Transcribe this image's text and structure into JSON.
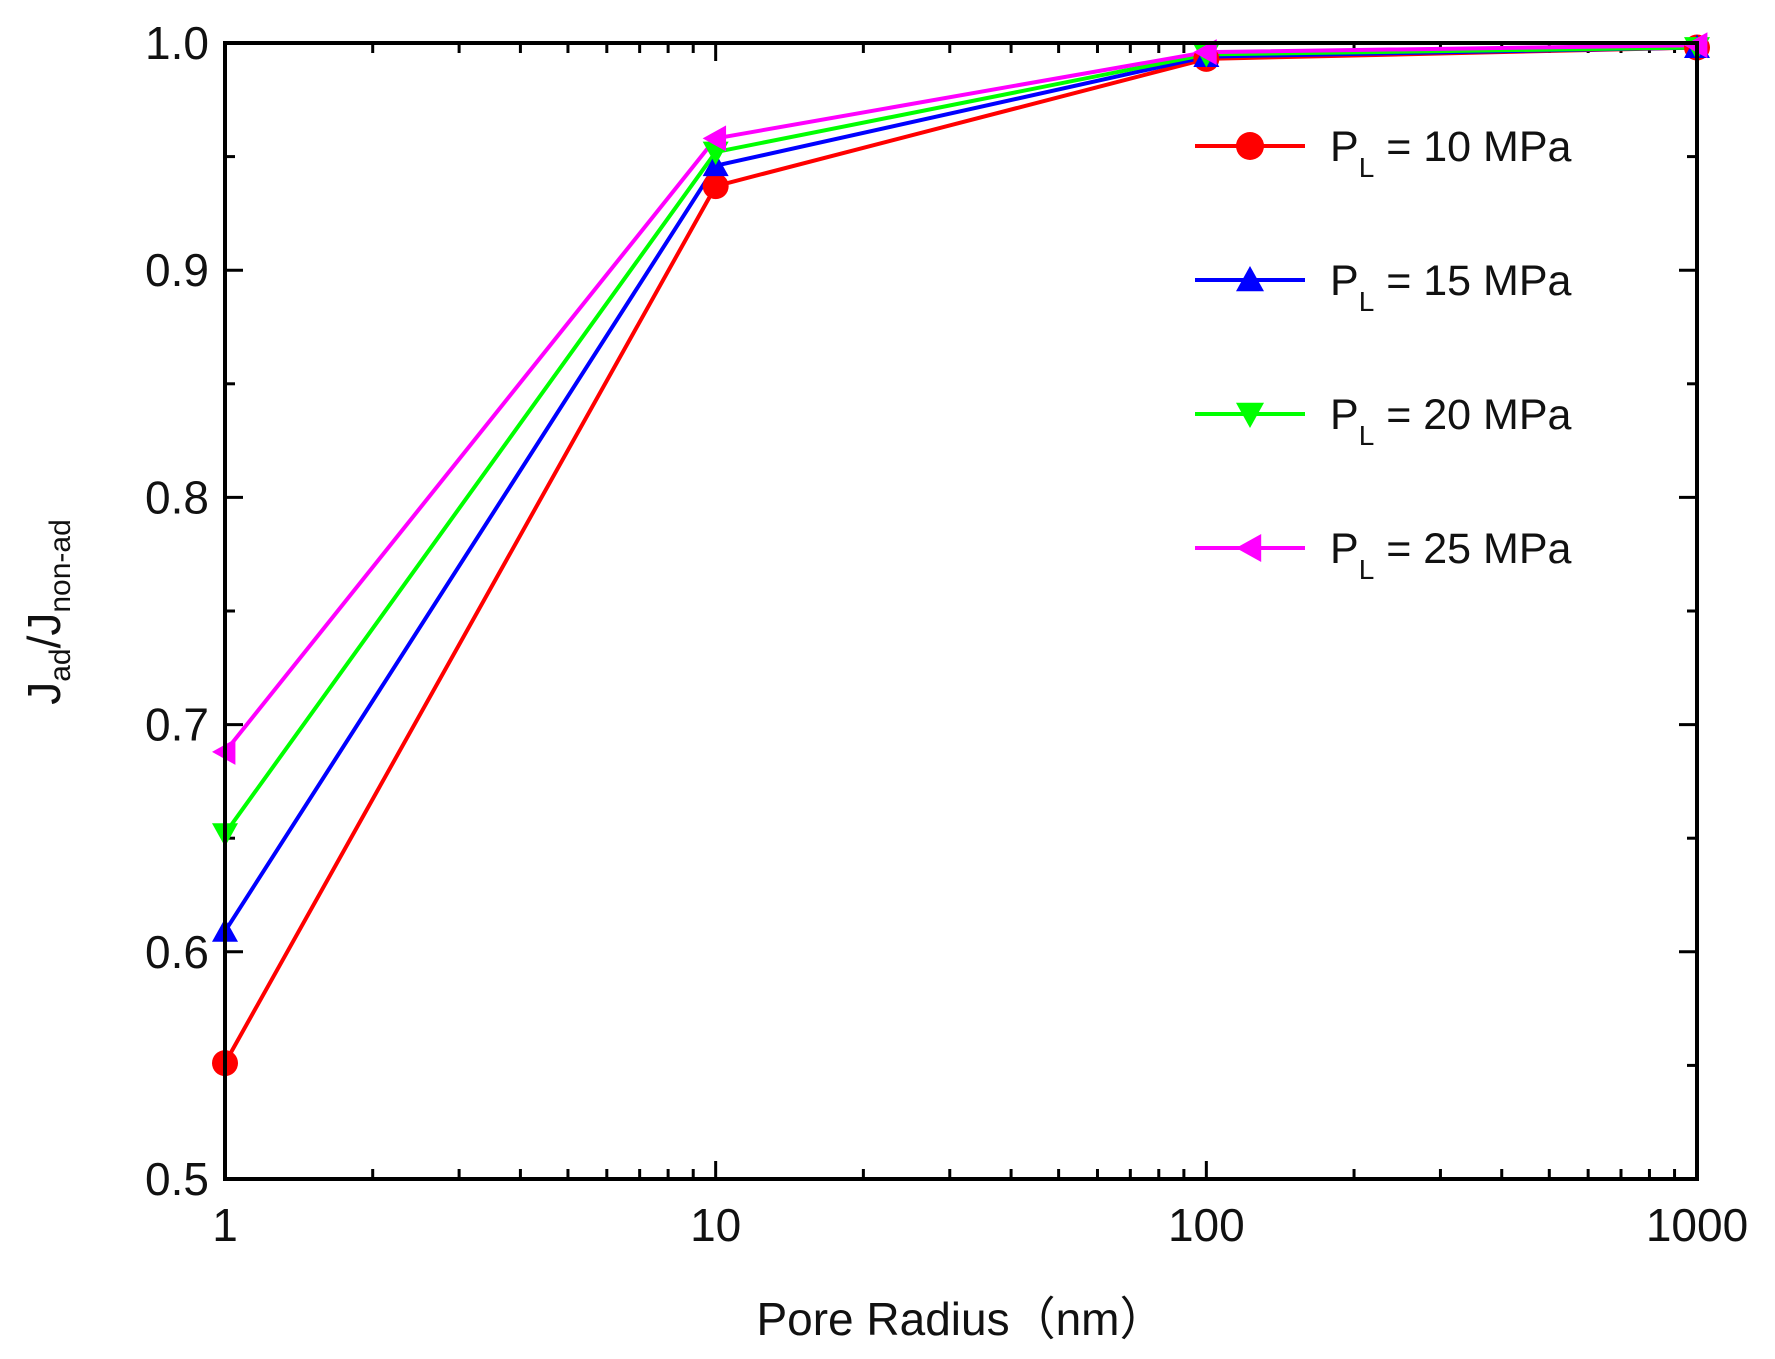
{
  "chart_data": {
    "type": "line",
    "title": "",
    "xscale": "log",
    "xlim": [
      1,
      1000
    ],
    "ylim": [
      0.5,
      1.0
    ],
    "x_ticks": [
      1,
      10,
      100,
      1000
    ],
    "x_tick_labels": [
      "1",
      "10",
      "100",
      "1000"
    ],
    "y_ticks": [
      0.5,
      0.6,
      0.7,
      0.8,
      0.9,
      1.0
    ],
    "y_tick_labels": [
      "0.5",
      "0.6",
      "0.7",
      "0.8",
      "0.9",
      "1.0"
    ],
    "xlabel": "Pore Radius（nm）",
    "ylabel": {
      "main": "J",
      "sub1": "ad",
      "slash": "/J",
      "sub2": "non-ad"
    },
    "legend_position": "top-right",
    "x": [
      1,
      10,
      100,
      1000
    ],
    "series": [
      {
        "name": "PL = 10 MPa",
        "label_main": "P",
        "label_sub": "L",
        "label_rest": " = 10 MPa",
        "color": "#ff0000",
        "marker": "circle",
        "values": [
          0.551,
          0.937,
          0.993,
          0.998
        ]
      },
      {
        "name": "PL = 15 MPa",
        "label_main": "P",
        "label_sub": "L",
        "label_rest": " = 15 MPa",
        "color": "#0000ff",
        "marker": "triangle-up",
        "values": [
          0.609,
          0.946,
          0.994,
          0.998
        ]
      },
      {
        "name": "PL = 20 MPa",
        "label_main": "P",
        "label_sub": "L",
        "label_rest": " = 20 MPa",
        "color": "#00ff00",
        "marker": "triangle-down",
        "values": [
          0.652,
          0.952,
          0.995,
          0.998
        ]
      },
      {
        "name": "PL = 25 MPa",
        "label_main": "P",
        "label_sub": "L",
        "label_rest": " = 25 MPa",
        "color": "#ff00ff",
        "marker": "triangle-left",
        "values": [
          0.688,
          0.958,
          0.996,
          0.999
        ]
      }
    ]
  }
}
